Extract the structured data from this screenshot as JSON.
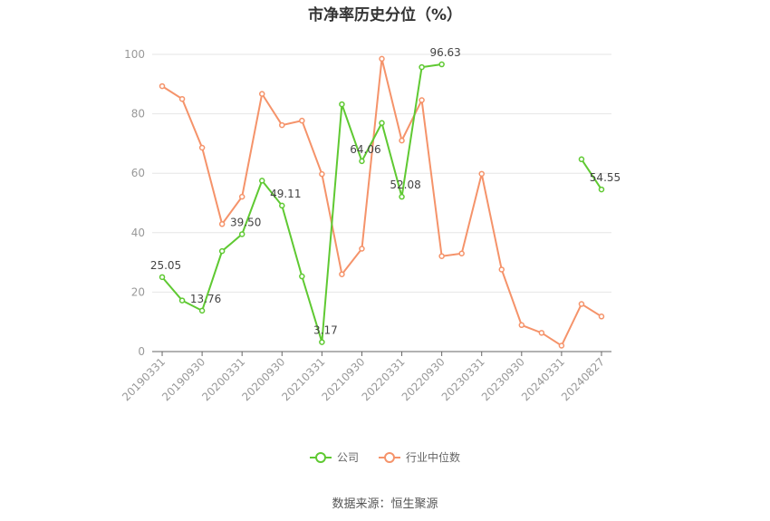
{
  "title": "市净率历史分位（%）",
  "source": "数据来源：恒生聚源",
  "colors": {
    "company": "#5fc932",
    "industry": "#f5936a",
    "grid": "#e6e6e6",
    "axis": "#999999"
  },
  "chart_data": {
    "type": "line",
    "ylim": [
      0,
      100
    ],
    "yticks": [
      0,
      20,
      40,
      60,
      80,
      100
    ],
    "categories": [
      "20190331",
      "20190630",
      "20190930",
      "20191231",
      "20200331",
      "20200630",
      "20200930",
      "20201231",
      "20210331",
      "20210630",
      "20210930",
      "20211231",
      "20220331",
      "20220630",
      "20220930",
      "20221231",
      "20230331",
      "20230630",
      "20230930",
      "20231231",
      "20240331",
      "20240630",
      "20240827"
    ],
    "xtick_labels": [
      "20190331",
      "20190930",
      "20200331",
      "20200930",
      "20210331",
      "20210930",
      "20220331",
      "20220930",
      "20230331",
      "20230930",
      "20240331",
      "20240827"
    ],
    "series": [
      {
        "name": "公司",
        "values": [
          25.05,
          17.2,
          13.76,
          33.8,
          39.5,
          57.5,
          49.11,
          25.3,
          3.17,
          83.2,
          64.06,
          76.9,
          52.08,
          95.7,
          96.63,
          null,
          null,
          null,
          null,
          null,
          null,
          64.7,
          54.55
        ],
        "labels": {
          "0": "25.05",
          "2": "13.76",
          "4": "39.50",
          "6": "49.11",
          "8": "3.17",
          "10": "64.06",
          "12": "52.08",
          "14": "96.63",
          "22": "54.55"
        }
      },
      {
        "name": "行业中位数",
        "values": [
          89.3,
          85.0,
          68.6,
          42.9,
          52.1,
          86.7,
          76.2,
          77.7,
          59.7,
          26.0,
          34.6,
          98.5,
          71.0,
          84.6,
          32.1,
          33.0,
          59.8,
          27.6,
          8.9,
          6.3,
          2.0,
          16.0,
          11.8
        ]
      }
    ]
  },
  "legend": {
    "company": "公司",
    "industry": "行业中位数"
  }
}
